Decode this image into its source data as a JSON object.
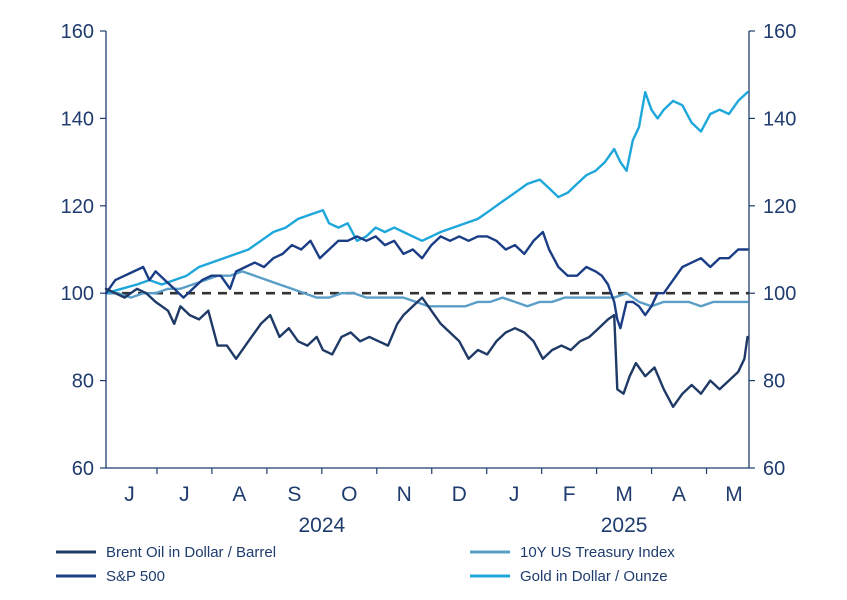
{
  "chart_data": {
    "type": "line",
    "title": "",
    "xlabel": "",
    "ylabel": "",
    "ylim": [
      60,
      160
    ],
    "yticks": [
      60,
      80,
      100,
      120,
      140,
      160
    ],
    "y2ticks": [
      60,
      80,
      100,
      120,
      140,
      160
    ],
    "reference_line": 100,
    "grid": false,
    "legend_position": "bottom",
    "months": [
      "J",
      "J",
      "A",
      "S",
      "O",
      "N",
      "D",
      "J",
      "F",
      "M",
      "A",
      "M"
    ],
    "years": [
      {
        "label": "2024",
        "month_index_center": 3.5
      },
      {
        "label": "2025",
        "month_index_center": 9.0
      }
    ],
    "x_unit": "months since start of June 2024",
    "series": [
      {
        "name": "Brent Oil in Dollar / Barrel",
        "color": "#1f3a66",
        "points": [
          [
            0,
            101
          ],
          [
            0.3,
            100
          ],
          [
            0.6,
            99
          ],
          [
            1.0,
            101
          ],
          [
            1.3,
            100
          ],
          [
            1.6,
            98
          ],
          [
            2.0,
            96
          ],
          [
            2.2,
            93
          ],
          [
            2.4,
            97
          ],
          [
            2.7,
            95
          ],
          [
            3.0,
            94
          ],
          [
            3.3,
            96
          ],
          [
            3.6,
            88
          ],
          [
            3.9,
            88
          ],
          [
            4.2,
            85
          ],
          [
            4.5,
            88
          ],
          [
            4.8,
            91
          ],
          [
            5.0,
            93
          ],
          [
            5.3,
            95
          ],
          [
            5.6,
            90
          ],
          [
            5.9,
            92
          ],
          [
            6.2,
            89
          ],
          [
            6.5,
            88
          ],
          [
            6.8,
            90
          ],
          [
            7.0,
            87
          ],
          [
            7.3,
            86
          ],
          [
            7.6,
            90
          ],
          [
            7.9,
            91
          ],
          [
            8.2,
            89
          ],
          [
            8.5,
            90
          ],
          [
            8.8,
            89
          ],
          [
            9.1,
            88
          ],
          [
            9.4,
            93
          ],
          [
            9.6,
            95
          ],
          [
            9.9,
            97
          ],
          [
            10.2,
            99
          ],
          [
            10.5,
            96
          ],
          [
            10.8,
            93
          ],
          [
            11.1,
            91
          ],
          [
            11.4,
            89
          ],
          [
            11.7,
            85
          ],
          [
            12.0,
            87
          ],
          [
            12.3,
            86
          ],
          [
            12.6,
            89
          ],
          [
            12.9,
            91
          ],
          [
            13.2,
            92
          ],
          [
            13.5,
            91
          ],
          [
            13.8,
            89
          ],
          [
            14.1,
            85
          ],
          [
            14.4,
            87
          ],
          [
            14.7,
            88
          ],
          [
            15.0,
            87
          ],
          [
            15.3,
            89
          ],
          [
            15.6,
            90
          ],
          [
            15.9,
            92
          ],
          [
            16.2,
            94
          ],
          [
            16.4,
            95
          ],
          [
            16.5,
            78
          ],
          [
            16.7,
            77
          ],
          [
            16.9,
            81
          ],
          [
            17.1,
            84
          ],
          [
            17.4,
            81
          ],
          [
            17.7,
            83
          ],
          [
            18.0,
            78
          ],
          [
            18.3,
            74
          ],
          [
            18.6,
            77
          ],
          [
            18.9,
            79
          ],
          [
            19.2,
            77
          ],
          [
            19.5,
            80
          ],
          [
            19.8,
            78
          ],
          [
            20.1,
            80
          ],
          [
            20.4,
            82
          ],
          [
            20.6,
            85
          ],
          [
            20.7,
            90
          ]
        ]
      },
      {
        "name": "S&P 500",
        "color": "#1a3d86",
        "points": [
          [
            0,
            100
          ],
          [
            0.3,
            103
          ],
          [
            0.6,
            104
          ],
          [
            0.9,
            105
          ],
          [
            1.2,
            106
          ],
          [
            1.4,
            103
          ],
          [
            1.6,
            105
          ],
          [
            1.9,
            103
          ],
          [
            2.2,
            101
          ],
          [
            2.5,
            99
          ],
          [
            2.8,
            101
          ],
          [
            3.1,
            103
          ],
          [
            3.4,
            104
          ],
          [
            3.7,
            104
          ],
          [
            4.0,
            101
          ],
          [
            4.2,
            105
          ],
          [
            4.5,
            106
          ],
          [
            4.8,
            107
          ],
          [
            5.1,
            106
          ],
          [
            5.4,
            108
          ],
          [
            5.7,
            109
          ],
          [
            6.0,
            111
          ],
          [
            6.3,
            110
          ],
          [
            6.6,
            112
          ],
          [
            6.9,
            108
          ],
          [
            7.2,
            110
          ],
          [
            7.5,
            112
          ],
          [
            7.8,
            112
          ],
          [
            8.1,
            113
          ],
          [
            8.4,
            112
          ],
          [
            8.7,
            113
          ],
          [
            9.0,
            111
          ],
          [
            9.3,
            112
          ],
          [
            9.6,
            109
          ],
          [
            9.9,
            110
          ],
          [
            10.2,
            108
          ],
          [
            10.5,
            111
          ],
          [
            10.8,
            113
          ],
          [
            11.1,
            112
          ],
          [
            11.4,
            113
          ],
          [
            11.7,
            112
          ],
          [
            12.0,
            113
          ],
          [
            12.3,
            113
          ],
          [
            12.6,
            112
          ],
          [
            12.9,
            110
          ],
          [
            13.2,
            111
          ],
          [
            13.5,
            109
          ],
          [
            13.8,
            112
          ],
          [
            14.1,
            114
          ],
          [
            14.3,
            110
          ],
          [
            14.6,
            106
          ],
          [
            14.9,
            104
          ],
          [
            15.2,
            104
          ],
          [
            15.5,
            106
          ],
          [
            15.8,
            105
          ],
          [
            16.0,
            104
          ],
          [
            16.2,
            102
          ],
          [
            16.4,
            98
          ],
          [
            16.5,
            94
          ],
          [
            16.6,
            92
          ],
          [
            16.8,
            98
          ],
          [
            17.0,
            98
          ],
          [
            17.2,
            97
          ],
          [
            17.4,
            95
          ],
          [
            17.6,
            97
          ],
          [
            17.8,
            100
          ],
          [
            18.0,
            100
          ],
          [
            18.3,
            103
          ],
          [
            18.6,
            106
          ],
          [
            18.9,
            107
          ],
          [
            19.2,
            108
          ],
          [
            19.5,
            106
          ],
          [
            19.8,
            108
          ],
          [
            20.1,
            108
          ],
          [
            20.4,
            110
          ],
          [
            20.7,
            110
          ]
        ]
      },
      {
        "name": "10Y US Treasury Index",
        "color": "#5a9ec8",
        "points": [
          [
            0,
            100
          ],
          [
            0.4,
            100
          ],
          [
            0.8,
            99
          ],
          [
            1.2,
            100
          ],
          [
            1.6,
            100
          ],
          [
            2.0,
            101
          ],
          [
            2.4,
            101
          ],
          [
            2.8,
            102
          ],
          [
            3.2,
            103
          ],
          [
            3.6,
            104
          ],
          [
            4.0,
            104
          ],
          [
            4.4,
            105
          ],
          [
            4.8,
            104
          ],
          [
            5.2,
            103
          ],
          [
            5.6,
            102
          ],
          [
            6.0,
            101
          ],
          [
            6.4,
            100
          ],
          [
            6.8,
            99
          ],
          [
            7.2,
            99
          ],
          [
            7.6,
            100
          ],
          [
            8.0,
            100
          ],
          [
            8.4,
            99
          ],
          [
            8.8,
            99
          ],
          [
            9.2,
            99
          ],
          [
            9.6,
            99
          ],
          [
            10.0,
            98
          ],
          [
            10.4,
            97
          ],
          [
            10.8,
            97
          ],
          [
            11.2,
            97
          ],
          [
            11.6,
            97
          ],
          [
            12.0,
            98
          ],
          [
            12.4,
            98
          ],
          [
            12.8,
            99
          ],
          [
            13.2,
            98
          ],
          [
            13.6,
            97
          ],
          [
            14.0,
            98
          ],
          [
            14.4,
            98
          ],
          [
            14.8,
            99
          ],
          [
            15.2,
            99
          ],
          [
            15.6,
            99
          ],
          [
            16.0,
            99
          ],
          [
            16.4,
            99
          ],
          [
            16.8,
            100
          ],
          [
            17.2,
            98
          ],
          [
            17.6,
            97
          ],
          [
            18.0,
            98
          ],
          [
            18.4,
            98
          ],
          [
            18.8,
            98
          ],
          [
            19.2,
            97
          ],
          [
            19.6,
            98
          ],
          [
            20.0,
            98
          ],
          [
            20.4,
            98
          ],
          [
            20.7,
            98
          ]
        ]
      },
      {
        "name": "Gold in Dollar / Ounze",
        "color": "#1ea7db",
        "points": [
          [
            0,
            100
          ],
          [
            0.5,
            101
          ],
          [
            1.0,
            102
          ],
          [
            1.4,
            103
          ],
          [
            1.8,
            102
          ],
          [
            2.2,
            103
          ],
          [
            2.6,
            104
          ],
          [
            3.0,
            106
          ],
          [
            3.4,
            107
          ],
          [
            3.8,
            108
          ],
          [
            4.2,
            109
          ],
          [
            4.6,
            110
          ],
          [
            5.0,
            112
          ],
          [
            5.4,
            114
          ],
          [
            5.8,
            115
          ],
          [
            6.2,
            117
          ],
          [
            6.6,
            118
          ],
          [
            7.0,
            119
          ],
          [
            7.2,
            116
          ],
          [
            7.5,
            115
          ],
          [
            7.8,
            116
          ],
          [
            8.1,
            112
          ],
          [
            8.4,
            113
          ],
          [
            8.7,
            115
          ],
          [
            9.0,
            114
          ],
          [
            9.3,
            115
          ],
          [
            9.6,
            114
          ],
          [
            9.9,
            113
          ],
          [
            10.2,
            112
          ],
          [
            10.5,
            113
          ],
          [
            10.8,
            114
          ],
          [
            11.2,
            115
          ],
          [
            11.6,
            116
          ],
          [
            12.0,
            117
          ],
          [
            12.4,
            119
          ],
          [
            12.8,
            121
          ],
          [
            13.2,
            123
          ],
          [
            13.6,
            125
          ],
          [
            14.0,
            126
          ],
          [
            14.3,
            124
          ],
          [
            14.6,
            122
          ],
          [
            14.9,
            123
          ],
          [
            15.2,
            125
          ],
          [
            15.5,
            127
          ],
          [
            15.8,
            128
          ],
          [
            16.1,
            130
          ],
          [
            16.4,
            133
          ],
          [
            16.6,
            130
          ],
          [
            16.8,
            128
          ],
          [
            17.0,
            135
          ],
          [
            17.2,
            138
          ],
          [
            17.4,
            146
          ],
          [
            17.6,
            142
          ],
          [
            17.8,
            140
          ],
          [
            18.0,
            142
          ],
          [
            18.3,
            144
          ],
          [
            18.6,
            143
          ],
          [
            18.9,
            139
          ],
          [
            19.2,
            137
          ],
          [
            19.5,
            141
          ],
          [
            19.8,
            142
          ],
          [
            20.1,
            141
          ],
          [
            20.4,
            144
          ],
          [
            20.7,
            146
          ]
        ]
      }
    ]
  }
}
